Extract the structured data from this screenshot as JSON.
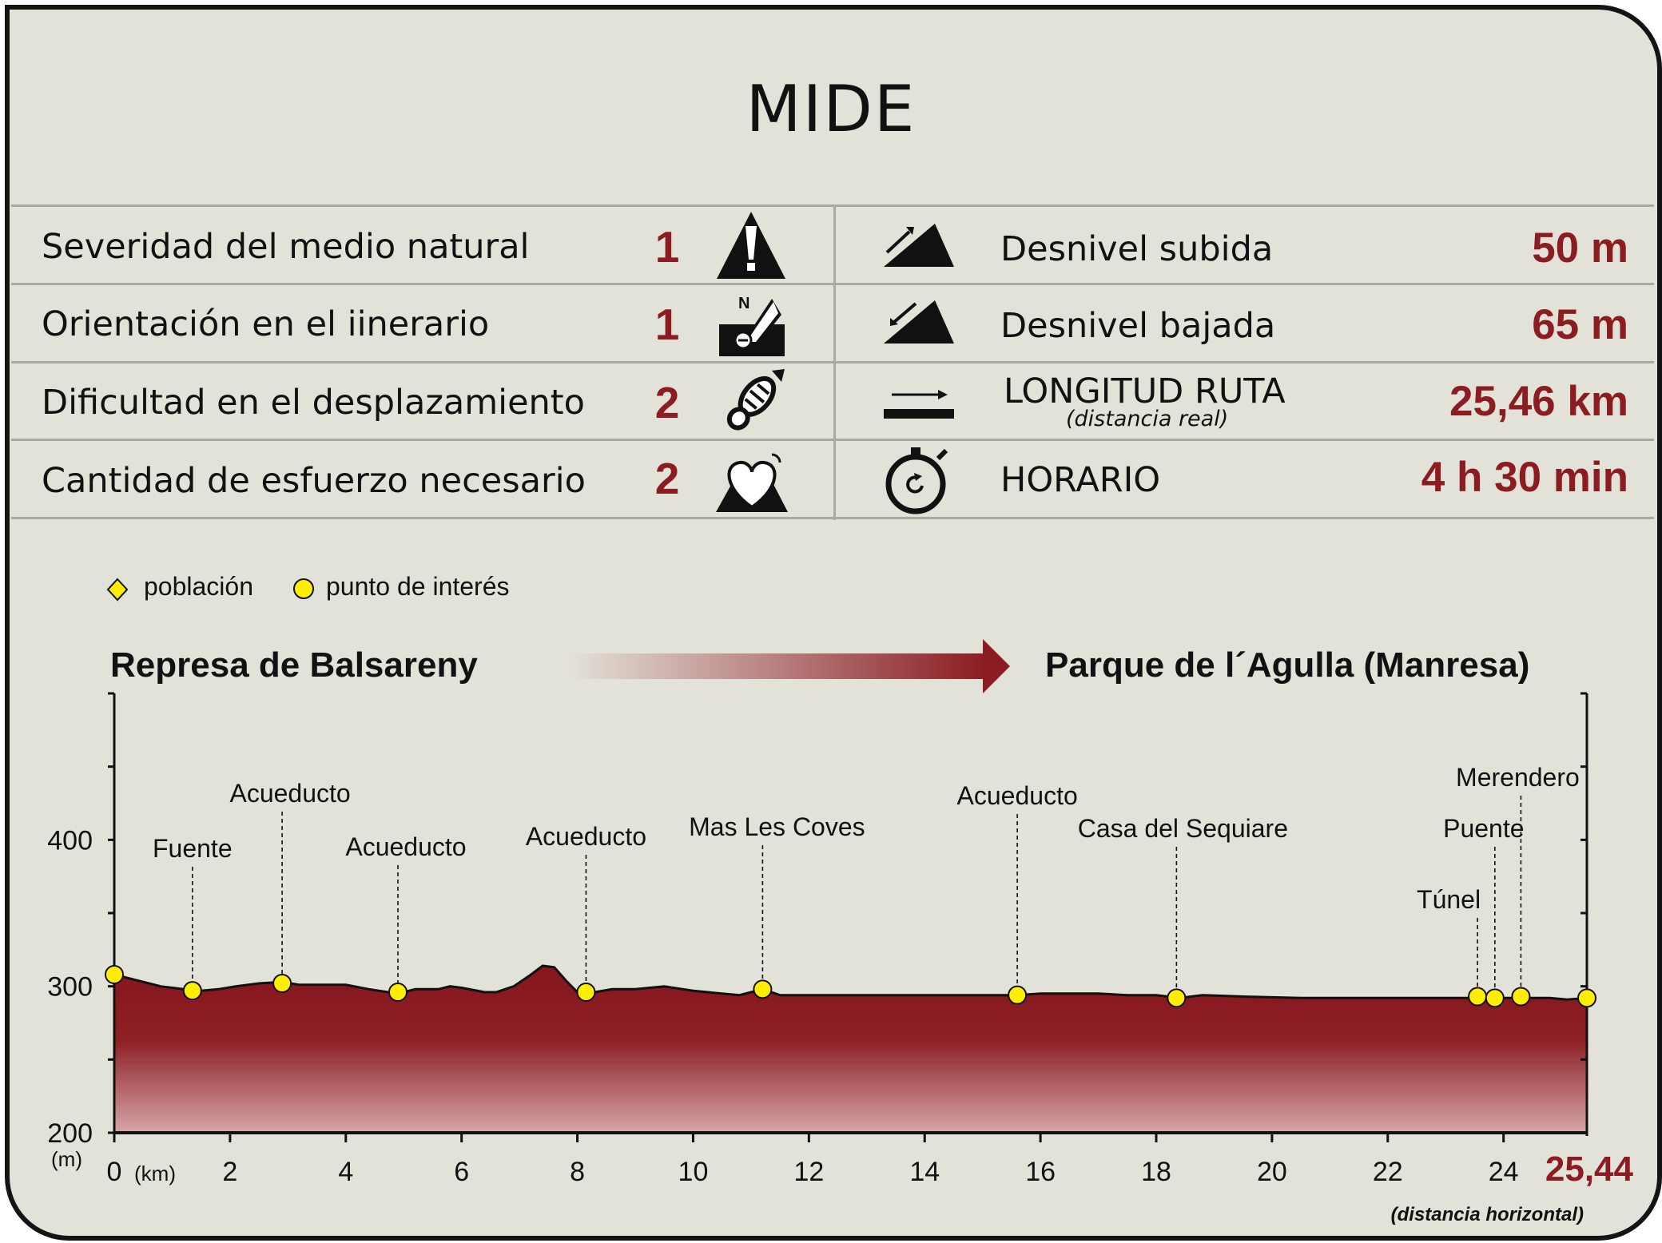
{
  "title": "MIDE",
  "mide": {
    "rows": [
      {
        "label": "Severidad del medio natural",
        "score": "1",
        "icon": "warning-icon"
      },
      {
        "label": "Orientación en el iinerario",
        "score": "1",
        "icon": "compass-icon"
      },
      {
        "label": "Dificultad en el desplazamiento",
        "score": "2",
        "icon": "footprint-icon"
      },
      {
        "label": "Cantidad de esfuerzo necesario",
        "score": "2",
        "icon": "heart-effort-icon"
      }
    ],
    "stats": [
      {
        "label": "Desnivel subida",
        "value": "50 m",
        "icon": "ascent-icon"
      },
      {
        "label": "Desnivel bajada",
        "value": "65 m",
        "icon": "descent-icon"
      },
      {
        "label": "LONGITUD RUTA",
        "sublabel": "(distancia real)",
        "value": "25,46 km",
        "icon": "distance-icon"
      },
      {
        "label": "HORARIO",
        "value": "4 h 30 min",
        "icon": "stopwatch-icon"
      }
    ]
  },
  "colors": {
    "accent": "#8b1c22",
    "background": "#e3e2d9",
    "marker": "#ffee00"
  },
  "legend": {
    "poblacion": "población",
    "punto_interes": "punto de interés"
  },
  "route": {
    "start": "Represa de Balsareny",
    "end": "Parque de l´Agulla (Manresa)"
  },
  "chart_data": {
    "type": "area",
    "ylabel_unit": "(m)",
    "xlabel_unit": "(km)",
    "xlim": [
      0,
      25.44
    ],
    "ylim": [
      200,
      500
    ],
    "x_ticks": [
      "0",
      "2",
      "4",
      "6",
      "8",
      "10",
      "12",
      "14",
      "16",
      "18",
      "20",
      "22",
      "24"
    ],
    "y_ticks": [
      "200",
      "300",
      "400"
    ],
    "x_end_label": "25,44",
    "x_caption": "(distancia horizontal)",
    "profile": {
      "x": [
        0,
        0.3,
        0.8,
        1.2,
        1.5,
        1.8,
        2.1,
        2.5,
        2.9,
        3.2,
        3.6,
        4.0,
        4.4,
        4.9,
        5.2,
        5.6,
        5.8,
        6.0,
        6.4,
        6.6,
        6.9,
        7.2,
        7.4,
        7.6,
        7.8,
        8.0,
        8.3,
        8.6,
        9.0,
        9.5,
        10.0,
        10.5,
        10.8,
        11.2,
        11.5,
        12.0,
        13.0,
        14.0,
        15.0,
        15.6,
        16.0,
        16.5,
        17.0,
        17.5,
        18.0,
        18.4,
        18.8,
        19.5,
        20.5,
        22.0,
        23.0,
        23.6,
        23.9,
        24.3,
        24.8,
        25.1,
        25.44
      ],
      "y": [
        308,
        305,
        300,
        298,
        297,
        298,
        300,
        302,
        303,
        301,
        301,
        301,
        298,
        295,
        298,
        298,
        300,
        299,
        296,
        296,
        300,
        308,
        314,
        313,
        304,
        296,
        296,
        298,
        298,
        300,
        297,
        295,
        294,
        298,
        294,
        294,
        294,
        294,
        294,
        294,
        295,
        295,
        295,
        294,
        294,
        292,
        294,
        293,
        292,
        292,
        292,
        292,
        292,
        292,
        292,
        291,
        292
      ]
    },
    "points": [
      {
        "label": "",
        "x": 0,
        "y": 308
      },
      {
        "label": "Fuente",
        "x": 1.35,
        "y": 297
      },
      {
        "label": "Acueducto",
        "x": 2.9,
        "y": 302
      },
      {
        "label": "Acueducto",
        "x": 4.9,
        "y": 296
      },
      {
        "label": "Acueducto",
        "x": 8.15,
        "y": 296
      },
      {
        "label": "Mas Les Coves",
        "x": 11.2,
        "y": 298
      },
      {
        "label": "Acueducto",
        "x": 15.6,
        "y": 294
      },
      {
        "label": "Casa del Sequiare",
        "x": 18.35,
        "y": 292
      },
      {
        "label": "Túnel",
        "x": 23.55,
        "y": 293
      },
      {
        "label": "Puente",
        "x": 23.85,
        "y": 292
      },
      {
        "label": "Merendero",
        "x": 24.3,
        "y": 293
      },
      {
        "label": "",
        "x": 25.44,
        "y": 292
      }
    ]
  }
}
